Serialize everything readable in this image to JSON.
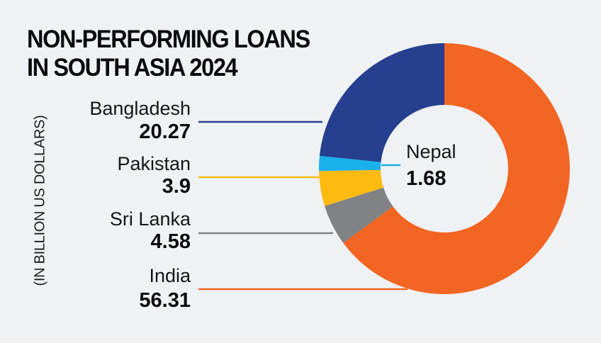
{
  "chart_data": {
    "type": "pie",
    "variant": "donut",
    "title": [
      "NON-PERFORMING LOANS",
      "IN SOUTH ASIA 2024"
    ],
    "unit_label": "(IN BILLION US DOLLARS)",
    "slices": [
      {
        "label": "India",
        "value": 56.31,
        "color": "#f26522"
      },
      {
        "label": "Sri Lanka",
        "value": 4.58,
        "color": "#808285"
      },
      {
        "label": "Pakistan",
        "value": 3.9,
        "color": "#fdbb12"
      },
      {
        "label": "Nepal",
        "value": 1.68,
        "color": "#1ab0ec"
      },
      {
        "label": "Bangladesh",
        "value": 20.27,
        "color": "#263f8e"
      }
    ],
    "value_text": {
      "India": "56.31",
      "Sri Lanka": "4.58",
      "Pakistan": "3.9",
      "Nepal": "1.68",
      "Bangladesh": "20.27"
    },
    "start": "top",
    "direction": "clockwise",
    "legend": "left"
  }
}
